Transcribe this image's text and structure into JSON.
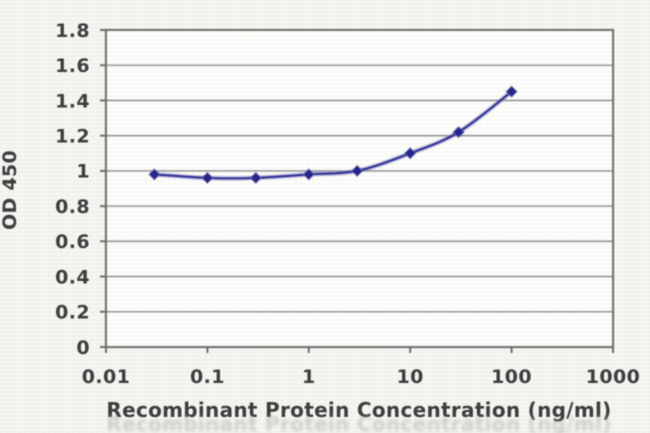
{
  "style": {
    "background": "#f5f5f2",
    "plot_background": "#fdfdfb",
    "grid_color": "#9b9b9b",
    "axis_color": "#6d6d6d",
    "tick_color": "#6d6d6d",
    "text_color": "#3a3a3a",
    "ghost_color": "#a8a8a0"
  },
  "chart_data": {
    "type": "line",
    "title": "",
    "xlabel": "Recombinant Protein Concentration (ng/ml)",
    "ylabel": "OD 450",
    "x_scale": "log",
    "xlim": [
      0.01,
      1000
    ],
    "ylim": [
      0,
      1.8
    ],
    "x_ticks": {
      "values": [
        0.01,
        0.1,
        1,
        10,
        100,
        1000
      ],
      "labels": [
        "0.01",
        "0.1",
        "1",
        "10",
        "100",
        "1000"
      ]
    },
    "y_ticks": {
      "values": [
        0,
        0.2,
        0.4,
        0.6,
        0.8,
        1,
        1.2,
        1.4,
        1.6,
        1.8
      ],
      "labels": [
        "0",
        "0.2",
        "0.4",
        "0.6",
        "0.8",
        "1",
        "1.2",
        "1.4",
        "1.6",
        "1.8"
      ]
    },
    "grid": "horizontal",
    "legend": "none",
    "series": [
      {
        "x": [
          0.03,
          0.1,
          0.3,
          1,
          3,
          10,
          30,
          100
        ],
        "y": [
          0.98,
          0.96,
          0.96,
          0.98,
          1.0,
          1.1,
          1.22,
          1.45
        ],
        "line_color": "#31319e",
        "line_halo_color": "#9393cc",
        "marker": "diamond",
        "marker_color": "#23238a",
        "marker_edge_color": "#5555b0",
        "smoothed": true
      }
    ]
  }
}
